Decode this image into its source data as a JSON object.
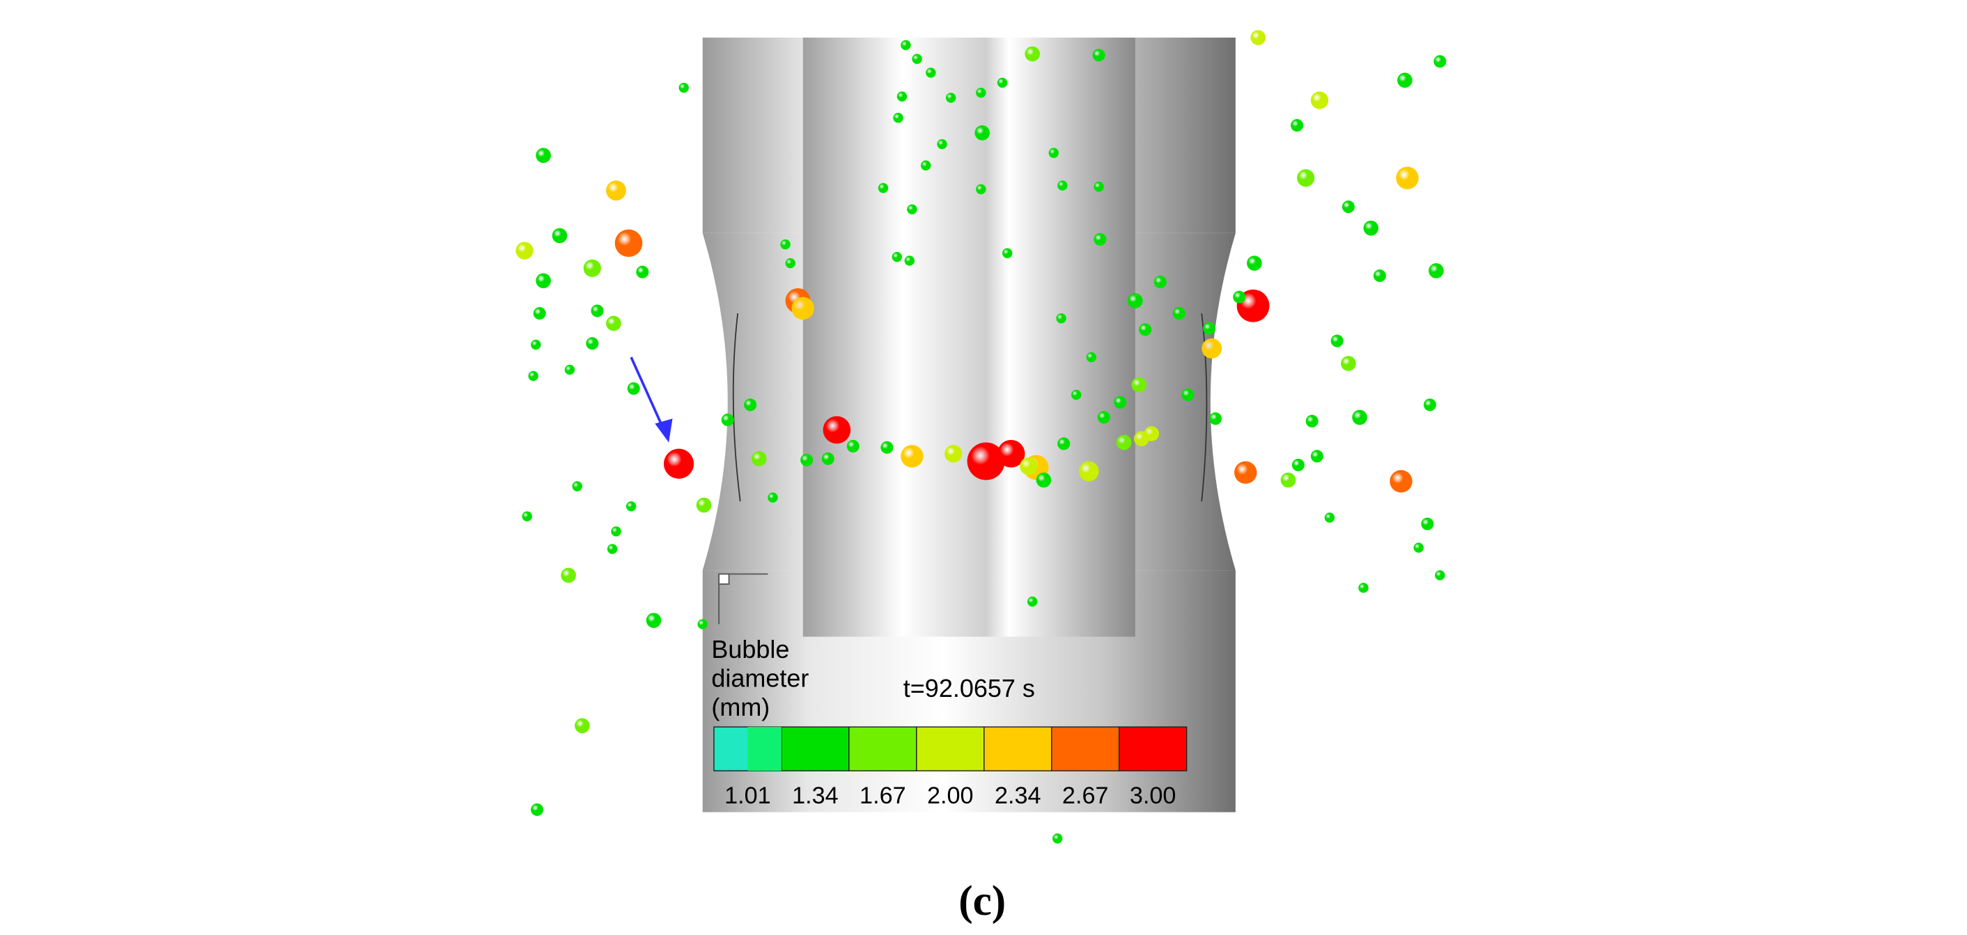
{
  "legend": {
    "title_lines": [
      "Bubble",
      "diameter",
      "(mm)"
    ],
    "ticks": [
      "1.01",
      "1.34",
      "1.67",
      "2.00",
      "2.34",
      "2.67",
      "3.00"
    ],
    "colors": [
      "#20e8c0",
      "#10f070",
      "#00e000",
      "#70f000",
      "#c8f000",
      "#ffcc00",
      "#ff6600",
      "#ff0000"
    ]
  },
  "time_label": "t=92.0657 s",
  "caption": "(c)"
}
